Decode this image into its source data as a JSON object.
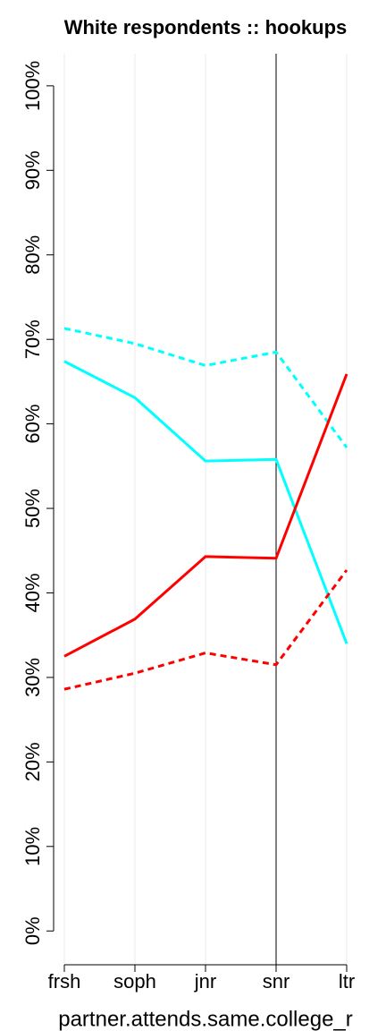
{
  "chart_data": {
    "type": "line",
    "title": "White respondents :: hookups",
    "x_label": "partner.attends.same.college_r",
    "categories": [
      "frsh",
      "soph",
      "jnr",
      "snr",
      "ltr"
    ],
    "series": [
      {
        "color": "#00ffff",
        "dash": "solid",
        "values": [
          67.4,
          63.1,
          55.6,
          55.8,
          34.0
        ]
      },
      {
        "color": "#00ffff",
        "dash": "dashed",
        "values": [
          71.3,
          69.5,
          66.9,
          68.5,
          57.2
        ]
      },
      {
        "color": "#ff0000",
        "dash": "solid",
        "values": [
          32.5,
          36.9,
          44.3,
          44.1,
          65.9
        ]
      },
      {
        "color": "#ff0000",
        "dash": "dashed",
        "values": [
          28.6,
          30.5,
          32.9,
          31.5,
          42.7
        ]
      }
    ],
    "ylim": [
      -4,
      103.8
    ],
    "yticks": [
      {
        "value": 0,
        "label": "0%"
      },
      {
        "value": 10,
        "label": "10%"
      },
      {
        "value": 20,
        "label": "20%"
      },
      {
        "value": 30,
        "label": "30%"
      },
      {
        "value": 40,
        "label": "40%"
      },
      {
        "value": 50,
        "label": "50%"
      },
      {
        "value": 60,
        "label": "60%"
      },
      {
        "value": 70,
        "label": "70%"
      },
      {
        "value": 80,
        "label": "80%"
      },
      {
        "value": 90,
        "label": "90%"
      },
      {
        "value": 100,
        "label": "100%"
      }
    ],
    "grid": true
  }
}
